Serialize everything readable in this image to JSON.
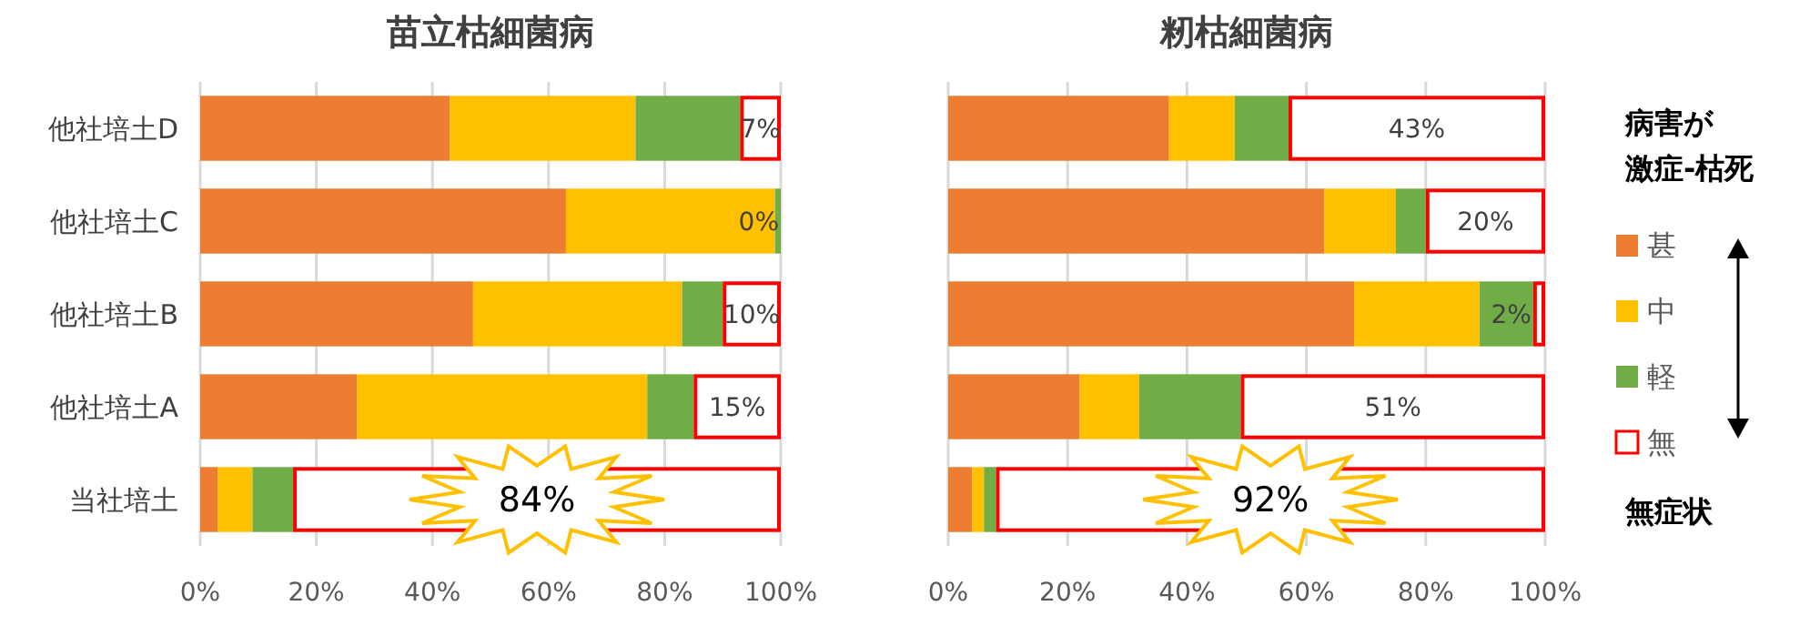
{
  "chart_data": [
    {
      "type": "bar",
      "title": "苗立枯細菌病",
      "orientation": "horizontal",
      "stacked": true,
      "categories": [
        "他社培土D",
        "他社培土C",
        "他社培土B",
        "他社培土A",
        "当社培土"
      ],
      "xlim": [
        0,
        100
      ],
      "xticks": [
        {
          "value": 0,
          "label": "0%"
        },
        {
          "value": 20,
          "label": "20%"
        },
        {
          "value": 40,
          "label": "40%"
        },
        {
          "value": 60,
          "label": "60%"
        },
        {
          "value": 80,
          "label": "80%"
        },
        {
          "value": 100,
          "label": "100%"
        }
      ],
      "grid": "x",
      "legend": false,
      "series": [
        {
          "color": "#ed7d31",
          "values": [
            43,
            63,
            47,
            27,
            3
          ]
        },
        {
          "color": "#ffc000",
          "values": [
            32,
            36,
            36,
            50,
            6
          ]
        },
        {
          "color": "#70ad47",
          "values": [
            18,
            1,
            7,
            8,
            7
          ]
        },
        {
          "color": "#ff0000",
          "values": [
            7,
            0,
            10,
            15,
            84
          ],
          "value_labels": [
            "7%",
            "0%",
            "10%",
            "15%",
            "84%"
          ]
        }
      ]
    },
    {
      "type": "bar",
      "title": "籾枯細菌病",
      "orientation": "horizontal",
      "stacked": true,
      "categories": [
        null,
        null,
        null,
        null,
        null
      ],
      "tick_labels": "x",
      "xlim": [
        0,
        100
      ],
      "xticks": [
        {
          "value": 0,
          "label": "0%"
        },
        {
          "value": 20,
          "label": "20%"
        },
        {
          "value": 40,
          "label": "40%"
        },
        {
          "value": 60,
          "label": "60%"
        },
        {
          "value": 80,
          "label": "80%"
        },
        {
          "value": 100,
          "label": "100%"
        }
      ],
      "grid": "x",
      "legend": "right",
      "legend_title": "病害が激症-枯死",
      "annotations": [
        "無症状"
      ],
      "series": [
        {
          "name": "甚",
          "color": "#ed7d31",
          "values": [
            37,
            63,
            68,
            22,
            4
          ]
        },
        {
          "name": "中",
          "color": "#ffc000",
          "values": [
            11,
            12,
            21,
            10,
            2
          ]
        },
        {
          "name": "軽",
          "color": "#70ad47",
          "values": [
            9,
            5,
            9,
            17,
            2
          ]
        },
        {
          "name": "無",
          "color": "#ff0000",
          "values": [
            43,
            20,
            2,
            51,
            92
          ],
          "value_labels": [
            "43%",
            "20%",
            "2%",
            "51%",
            "92%"
          ]
        }
      ]
    }
  ]
}
